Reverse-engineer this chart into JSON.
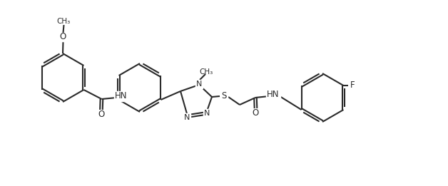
{
  "bg_color": "#ffffff",
  "line_color": "#2a2a2a",
  "line_width": 1.5,
  "figsize": [
    6.28,
    2.61
  ],
  "dpi": 100,
  "xlim": [
    0,
    6.28
  ],
  "ylim": [
    0,
    2.61
  ]
}
